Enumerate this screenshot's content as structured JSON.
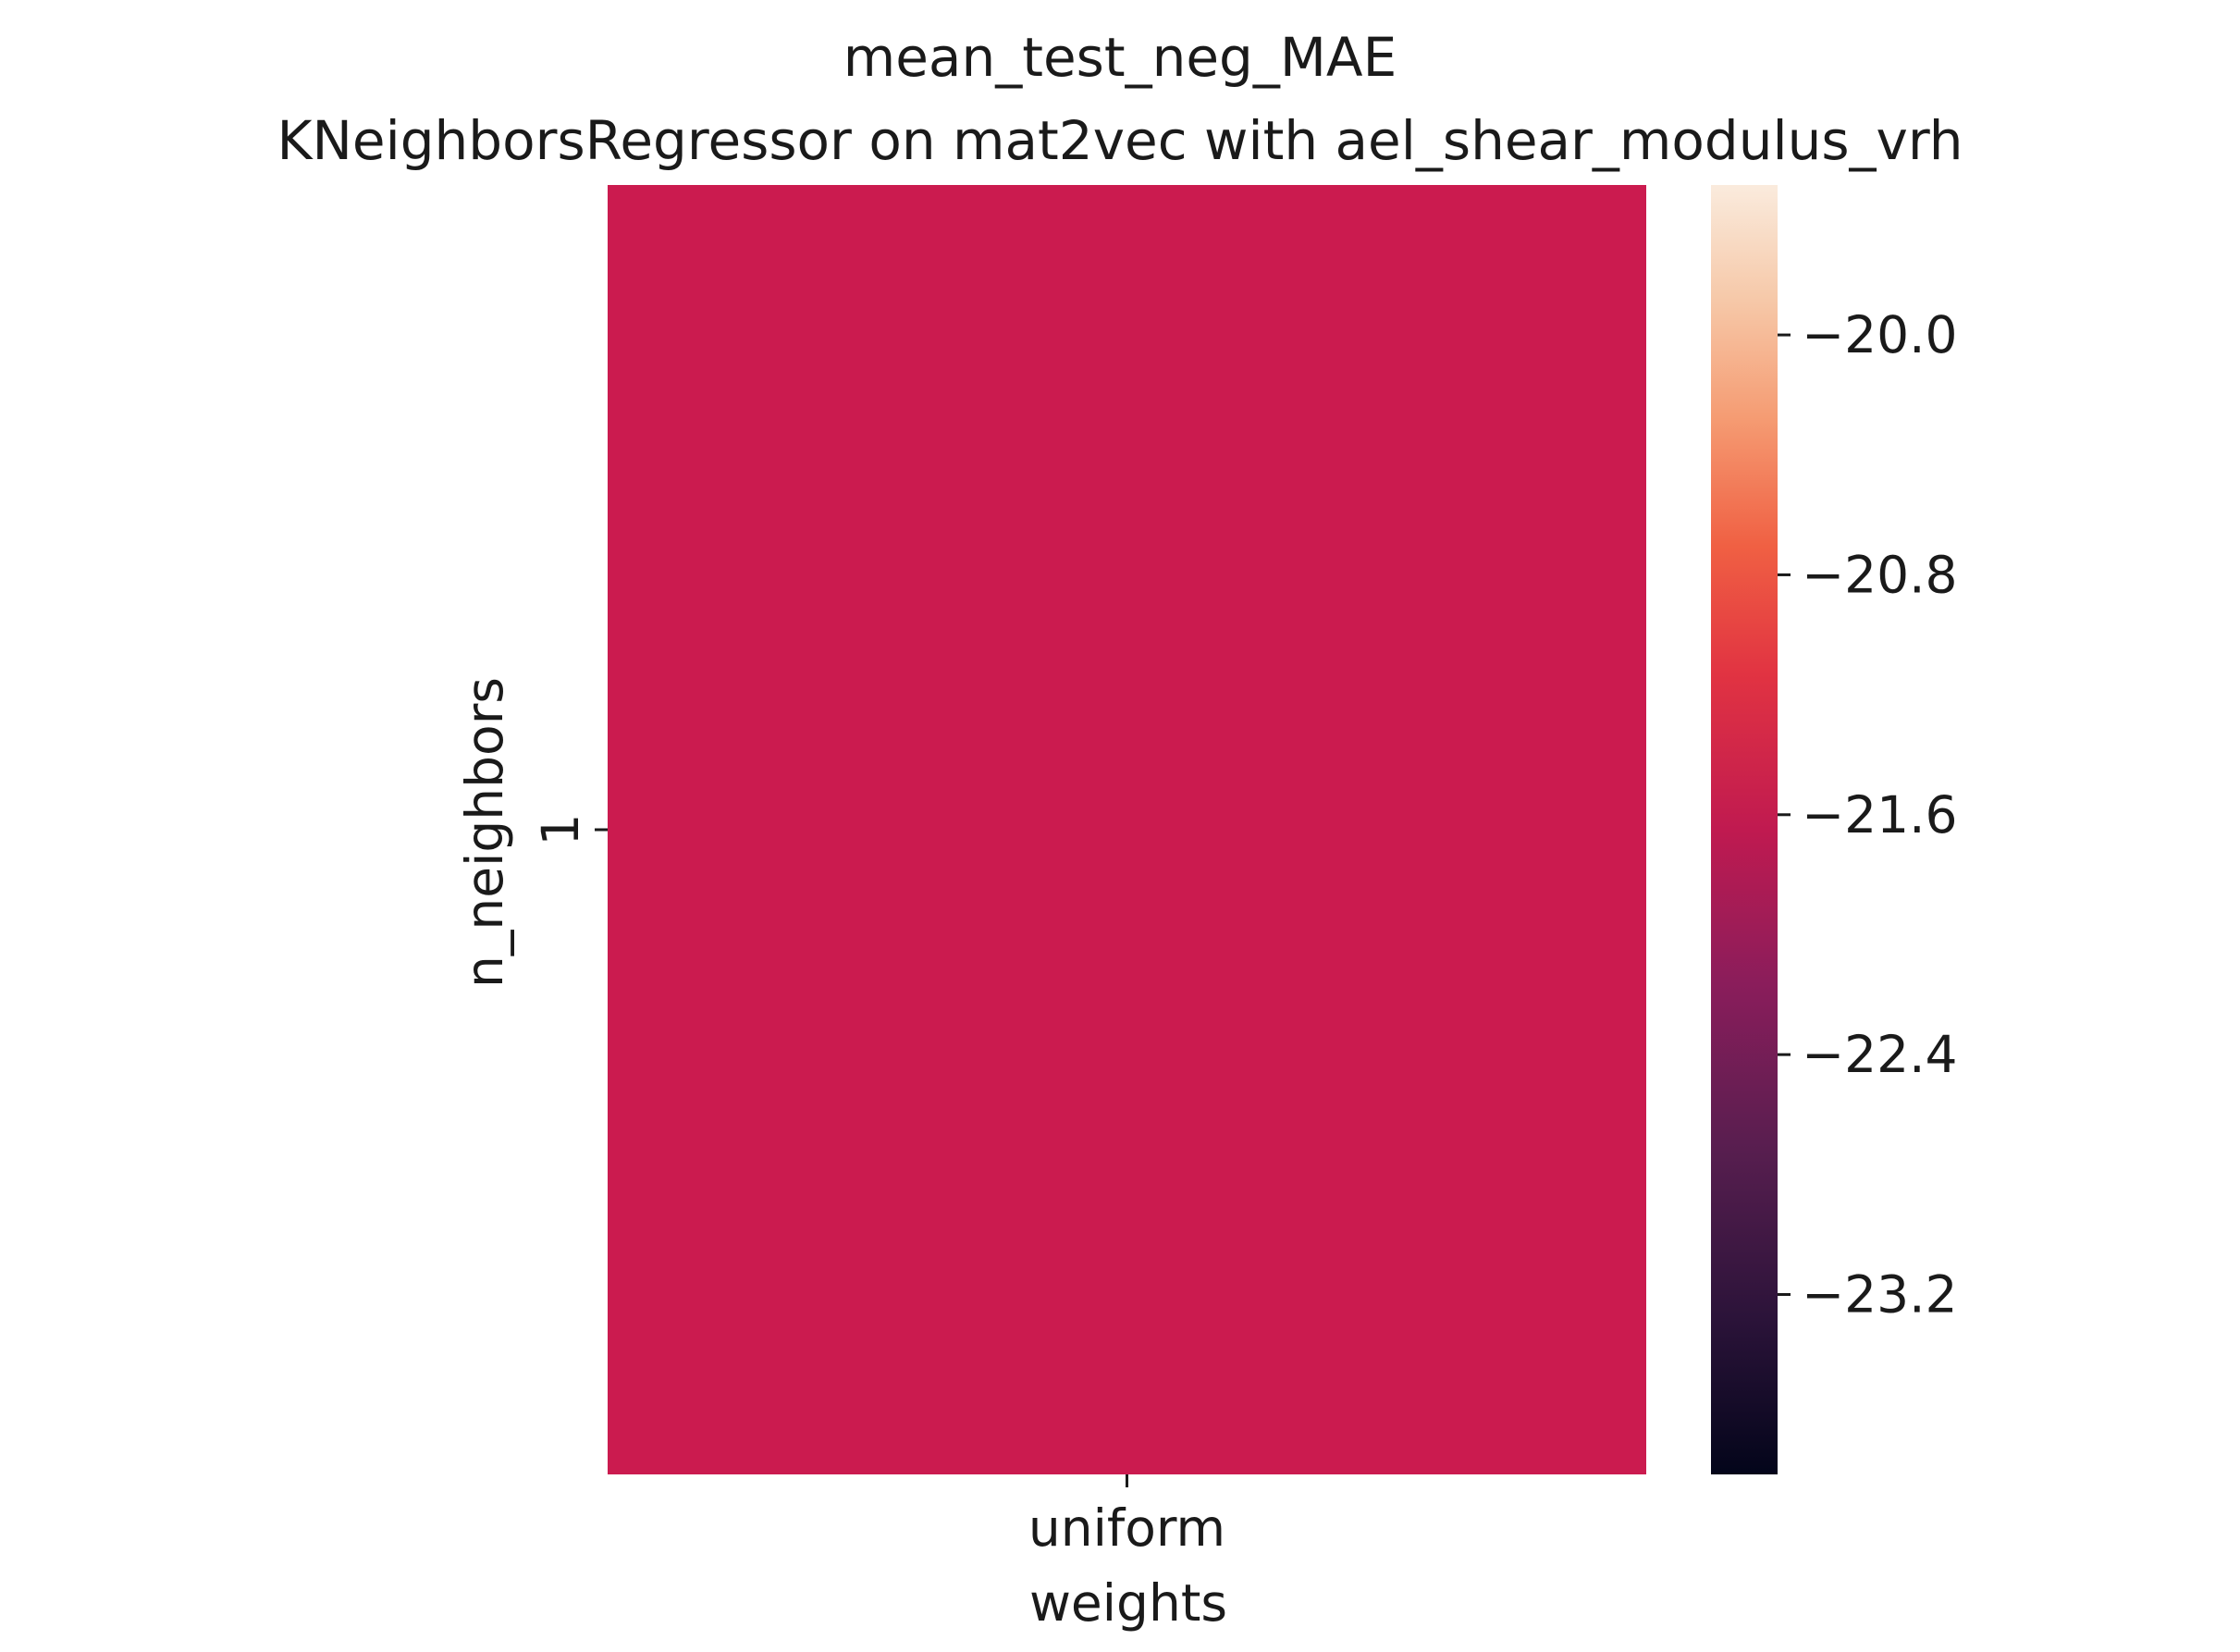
{
  "chart_data": {
    "type": "heatmap",
    "title": "mean_test_neg_MAE",
    "subtitle": "KNeighborsRegressor on mat2vec with ael_shear_modulus_vrh",
    "xlabel": "weights",
    "ylabel": "n_neighbors",
    "x_categories": [
      "uniform"
    ],
    "y_categories": [
      "1"
    ],
    "values": [
      [
        -21.65
      ]
    ],
    "colormap": "rocket",
    "colorbar": {
      "vmin": -23.8,
      "vmax": -19.5,
      "ticks": [
        -20.0,
        -20.8,
        -21.6,
        -22.4,
        -23.2
      ],
      "tick_labels": [
        "−20.0",
        "−20.8",
        "−21.6",
        "−22.4",
        "−23.2"
      ]
    },
    "cell_colors": [
      "#cb1b4f"
    ],
    "grid": false
  }
}
